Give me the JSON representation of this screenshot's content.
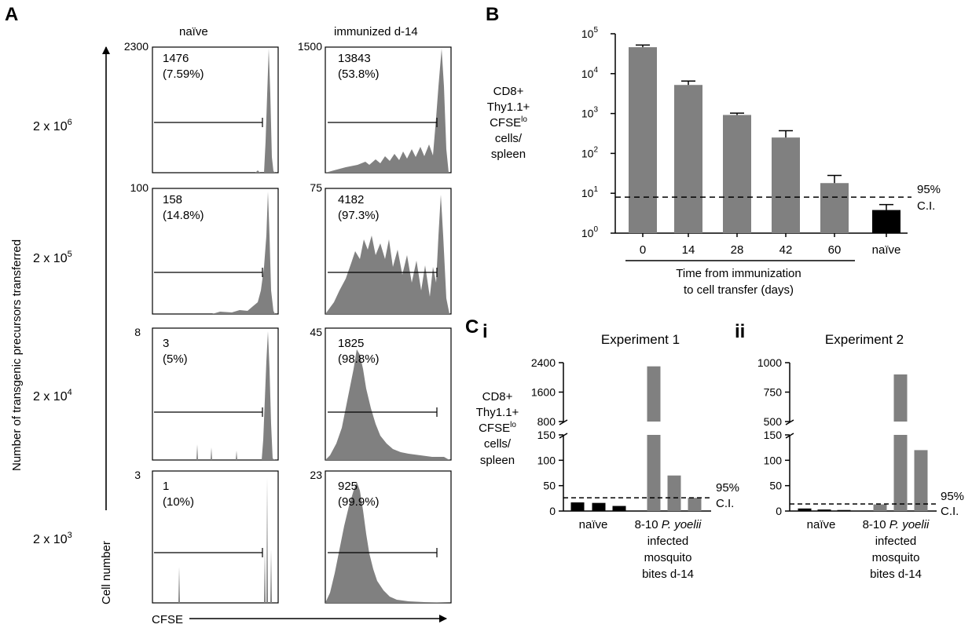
{
  "panel_a": {
    "letter": "A",
    "col_labels": [
      "naïve",
      "immunized d-14"
    ],
    "y_axis_title": "Number of transgenic precursors transferred",
    "cell_number_label": "Cell number",
    "cfse_label": "CFSE",
    "rows": [
      {
        "label_base": "2 x 10",
        "label_exp": "6"
      },
      {
        "label_base": "2 x 10",
        "label_exp": "5"
      },
      {
        "label_base": "2 x 10",
        "label_exp": "4"
      },
      {
        "label_base": "2 x 10",
        "label_exp": "3"
      }
    ],
    "histograms": [
      {
        "ymax": "2300",
        "count": "1476",
        "pct": "(7.59%)"
      },
      {
        "ymax": "1500",
        "count": "13843",
        "pct": "(53.8%)"
      },
      {
        "ymax": "100",
        "count": "158",
        "pct": "(14.8%)"
      },
      {
        "ymax": "75",
        "count": "4182",
        "pct": "(97.3%)"
      },
      {
        "ymax": "8",
        "count": "3",
        "pct": "(5%)"
      },
      {
        "ymax": "45",
        "count": "1825",
        "pct": "(98.8%)"
      },
      {
        "ymax": "3",
        "count": "1",
        "pct": "(10%)"
      },
      {
        "ymax": "23",
        "count": "925",
        "pct": "(99.9%)"
      }
    ]
  },
  "panel_b": {
    "letter": "B",
    "ylabel_lines": [
      "CD8+",
      "Thy1.1+",
      "CFSE",
      "cells/",
      "spleen"
    ],
    "ylabel_sup": "lo",
    "ci_label_lines": [
      "95%",
      "C.I."
    ],
    "xlabel_lines": [
      "Time from immunization",
      "to cell transfer (days)"
    ]
  },
  "panel_c": {
    "letter": "C",
    "sub_i": "i",
    "sub_ii": "ii",
    "ylabel_lines": [
      "CD8+",
      "Thy1.1+",
      "CFSE",
      "cells/",
      "spleen"
    ],
    "ylabel_sup": "lo",
    "ci_label_lines": [
      "95%",
      "C.I."
    ],
    "group_naive": "naïve",
    "group_infected_prefix": "8-10 ",
    "group_infected_italic": "P. yoelii",
    "group_infected_lines": [
      "infected",
      "mosquito",
      "bites d-14"
    ]
  },
  "chart_data": [
    {
      "type": "bar",
      "panel": "B",
      "categories": [
        "0",
        "14",
        "28",
        "42",
        "60",
        "naïve"
      ],
      "values": [
        46000,
        5200,
        920,
        250,
        18,
        3.8
      ],
      "error_upper": [
        52000,
        6500,
        1020,
        370,
        28,
        5.2
      ],
      "colors": [
        "#808080",
        "#808080",
        "#808080",
        "#808080",
        "#808080",
        "#000000"
      ],
      "yscale": "log",
      "ylim": [
        1,
        100000
      ],
      "yticks": [
        {
          "base": "10",
          "exp": "0"
        },
        {
          "base": "10",
          "exp": "1"
        },
        {
          "base": "10",
          "exp": "2"
        },
        {
          "base": "10",
          "exp": "3"
        },
        {
          "base": "10",
          "exp": "4"
        },
        {
          "base": "10",
          "exp": "5"
        }
      ],
      "ci_value": 8
    },
    {
      "type": "bar",
      "panel": "C i",
      "title": "Experiment 1",
      "groups": [
        "naïve",
        "8-10 P. yoelii infected mosquito bites d-14"
      ],
      "values": [
        17,
        16,
        10,
        2300,
        70,
        26
      ],
      "colors": [
        "#000000",
        "#000000",
        "#000000",
        "#808080",
        "#808080",
        "#808080"
      ],
      "y_lower_ticks": [
        "0",
        "50",
        "100",
        "150"
      ],
      "y_upper_ticks": [
        "800",
        "1600",
        "2400"
      ],
      "ylim_lower": [
        0,
        150
      ],
      "ylim_upper": [
        800,
        2400
      ],
      "ci_value": 26
    },
    {
      "type": "bar",
      "panel": "C ii",
      "title": "Experiment 2",
      "groups": [
        "naïve",
        "8-10 P. yoelii infected mosquito bites d-14"
      ],
      "values": [
        5,
        3,
        2,
        13,
        900,
        120
      ],
      "colors": [
        "#000000",
        "#000000",
        "#000000",
        "#808080",
        "#808080",
        "#808080"
      ],
      "y_lower_ticks": [
        "0",
        "50",
        "100",
        "150"
      ],
      "y_upper_ticks": [
        "500",
        "750",
        "1000"
      ],
      "ylim_lower": [
        0,
        150
      ],
      "ylim_upper": [
        500,
        1000
      ],
      "ci_value": 14
    }
  ]
}
